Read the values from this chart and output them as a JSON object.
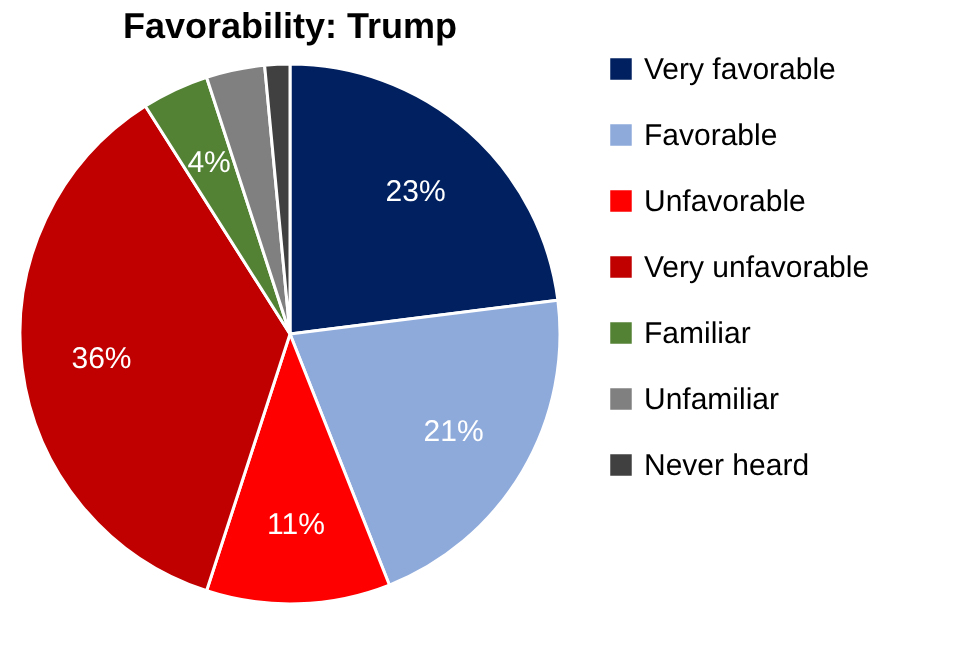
{
  "chart_data": {
    "type": "pie",
    "title": "Favorability: Trump",
    "categories": [
      "Very favorable",
      "Favorable",
      "Unfavorable",
      "Very unfavorable",
      "Familiar",
      "Unfamiliar",
      "Never heard"
    ],
    "values": [
      23,
      21,
      11,
      36,
      4,
      3.5,
      1.5
    ],
    "colors": [
      "#002060",
      "#8eaadb",
      "#ff0000",
      "#c00000",
      "#548235",
      "#808080",
      "#404040"
    ],
    "value_labels": [
      "23%",
      "21%",
      "11%",
      "36%",
      "4%",
      null,
      null
    ],
    "legend": "right"
  }
}
